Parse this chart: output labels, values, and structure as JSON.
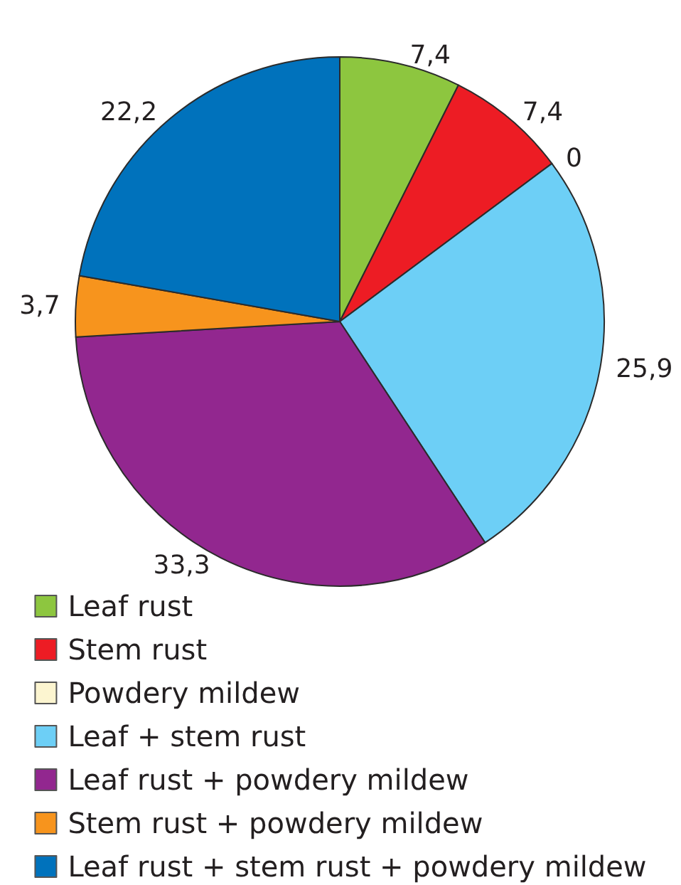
{
  "chart_data": {
    "type": "pie",
    "categories": [
      "Leaf rust",
      "Stem rust",
      "Powdery mildew",
      "Leaf + stem rust",
      "Leaf rust + powdery mildew",
      "Stem rust + powdery mildew",
      "Leaf rust + stem rust + powdery mildew"
    ],
    "values": [
      7.4,
      7.4,
      0,
      25.9,
      33.3,
      3.7,
      22.2
    ],
    "colors": [
      "#8dc63f",
      "#ed1c24",
      "#fcf5d0",
      "#6dcff6",
      "#92278f",
      "#f7941d",
      "#0072bc"
    ],
    "value_labels": [
      "7,4",
      "7,4",
      "0",
      "25,9",
      "33,3",
      "3,7",
      "22,2"
    ],
    "legend": "bottom"
  }
}
